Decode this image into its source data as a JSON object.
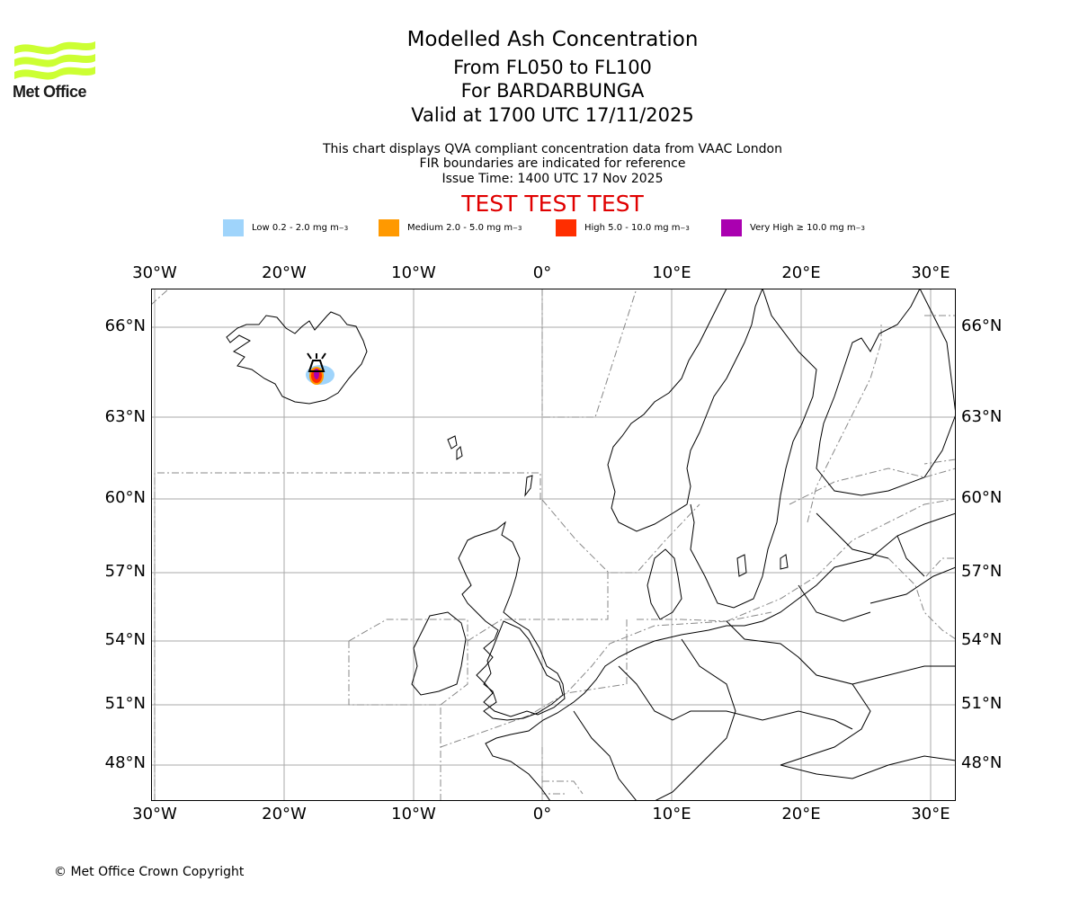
{
  "logo": {
    "text": "Met Office",
    "color": "#ccff33"
  },
  "header": {
    "title": "Modelled Ash Concentration",
    "flight_levels": "From FL050 to FL100",
    "volcano": "For BARDARBUNGA",
    "valid_time": "Valid at 1700 UTC 17/11/2025",
    "note_1": "This chart displays QVA compliant concentration data from VAAC London",
    "note_2": "FIR boundaries are indicated for reference",
    "issue_time": "Issue Time: 1400 UTC 17 Nov 2025",
    "test_banner": "TEST TEST TEST",
    "test_banner_color": "#e00000"
  },
  "legend": [
    {
      "label": "Low 0.2 - 2.0 mg m",
      "sup": "−3",
      "color": "#9fd4fb"
    },
    {
      "label": "Medium 2.0 - 5.0 mg m",
      "sup": "−3",
      "color": "#ff9900"
    },
    {
      "label": "High 5.0 - 10.0 mg m",
      "sup": "−3",
      "color": "#ff2e00"
    },
    {
      "label": "Very High ≥ 10.0 mg m",
      "sup": "−3",
      "color": "#aa00b0"
    }
  ],
  "axes": {
    "lon_ticks": [
      "30°W",
      "20°W",
      "10°W",
      "0°",
      "10°E",
      "20°E",
      "30°E"
    ],
    "lat_ticks": [
      "66°N",
      "63°N",
      "60°N",
      "57°N",
      "54°N",
      "51°N",
      "48°N"
    ]
  },
  "map": {
    "projection": "Plate Carree",
    "lon_range": [
      -30.2,
      32
    ],
    "lat_range": [
      46.6,
      67.5
    ],
    "ash_source": {
      "name": "BARDARBUNGA",
      "lon": -17.5,
      "lat": 64.6
    }
  },
  "footer": {
    "copyright": "© Met Office Crown Copyright"
  }
}
